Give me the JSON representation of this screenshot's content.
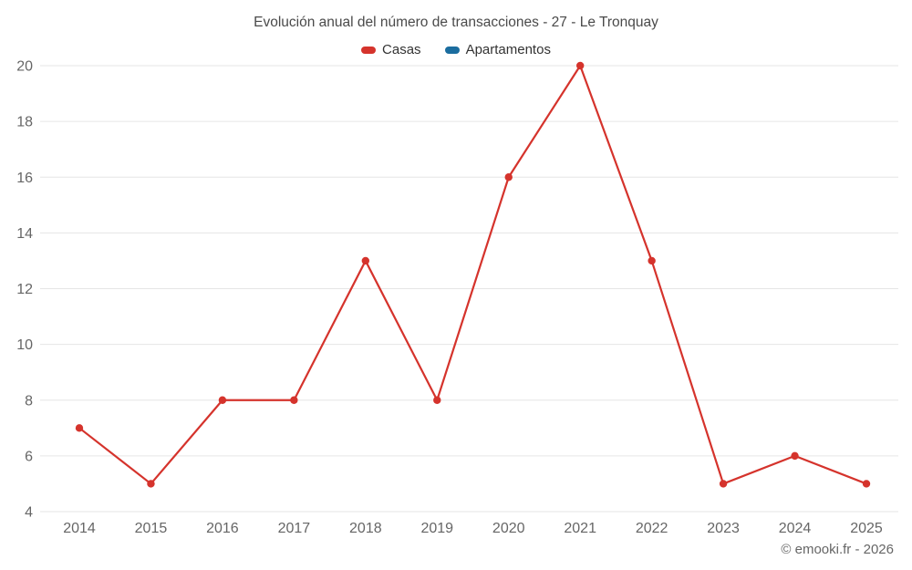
{
  "title": "Evolución anual del número de transacciones - 27 - Le Tronquay",
  "footer": "© emooki.fr - 2026",
  "colors": {
    "casas": "#d5332c",
    "apartamentos": "#1b6d9f",
    "gridline": "#e6e6e6",
    "axis_text": "#666666",
    "title_text": "#4a4a4a"
  },
  "chart_data": {
    "type": "line",
    "title": "Evolución anual del número de transacciones - 27 - Le Tronquay",
    "x": [
      2014,
      2015,
      2016,
      2017,
      2018,
      2019,
      2020,
      2021,
      2022,
      2023,
      2024,
      2025
    ],
    "series": [
      {
        "name": "Casas",
        "color": "#d5332c",
        "values": [
          7,
          5,
          8,
          8,
          13,
          8,
          16,
          20,
          13,
          5,
          6,
          5
        ]
      },
      {
        "name": "Apartamentos",
        "color": "#1b6d9f",
        "values": [
          null,
          null,
          null,
          null,
          null,
          null,
          null,
          null,
          null,
          null,
          null,
          null
        ]
      }
    ],
    "xlabel": "",
    "ylabel": "",
    "ylim": [
      4,
      20
    ],
    "yticks": [
      4,
      6,
      8,
      10,
      12,
      14,
      16,
      18,
      20
    ],
    "grid": true,
    "legend_position": "top"
  }
}
